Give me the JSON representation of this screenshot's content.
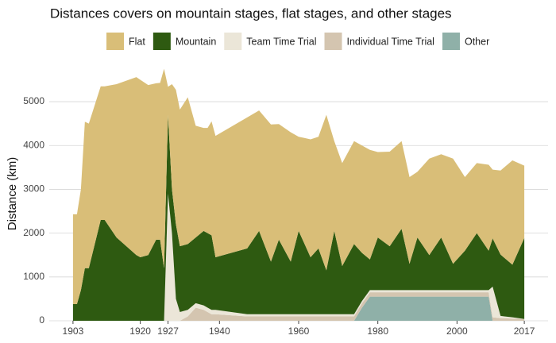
{
  "chart_data": {
    "type": "stacked-area",
    "title": "Distances covers on mountain stages, flat stages, and other stages",
    "ylabel": "Distance (km)",
    "x": [
      1903,
      1904,
      1905,
      1906,
      1907,
      1910,
      1911,
      1914,
      1919,
      1920,
      1922,
      1924,
      1925,
      1926,
      1927,
      1928,
      1929,
      1930,
      1932,
      1934,
      1936,
      1937,
      1938,
      1939,
      1947,
      1950,
      1953,
      1955,
      1958,
      1960,
      1963,
      1965,
      1967,
      1969,
      1971,
      1974,
      1976,
      1978,
      1980,
      1983,
      1986,
      1988,
      1990,
      1993,
      1996,
      1999,
      2002,
      2005,
      2008,
      2009,
      2011,
      2014,
      2017
    ],
    "series": [
      {
        "name": "Flat",
        "color": "#d9be78",
        "values": [
          2050,
          2050,
          2300,
          3340,
          3300,
          3050,
          3050,
          3500,
          4060,
          4050,
          3880,
          3570,
          3580,
          4550,
          640,
          2400,
          3070,
          3120,
          3350,
          2550,
          2350,
          2400,
          2600,
          2770,
          2990,
          2750,
          3130,
          2640,
          2950,
          2150,
          2690,
          2550,
          3550,
          2050,
          2350,
          2350,
          2450,
          2500,
          1950,
          2160,
          2000,
          1980,
          1500,
          2200,
          1900,
          2400,
          1680,
          1600,
          1960,
          1570,
          1920,
          2380,
          1650
        ]
      },
      {
        "name": "Mountain",
        "color": "#2e5a11",
        "values": [
          380,
          380,
          700,
          1200,
          1200,
          2300,
          2300,
          1900,
          1500,
          1450,
          1500,
          1850,
          1850,
          1200,
          1800,
          1000,
          1700,
          1500,
          1500,
          1500,
          1700,
          1700,
          1700,
          1200,
          1500,
          1900,
          1200,
          1700,
          1200,
          1900,
          1300,
          1500,
          1000,
          1900,
          1100,
          1600,
          1100,
          700,
          1200,
          1000,
          1400,
          600,
          1200,
          800,
          1200,
          600,
          900,
          1300,
          900,
          1100,
          1400,
          1200,
          1850
        ]
      },
      {
        "name": "Team Time Trial",
        "color": "#ebe6d8",
        "values": [
          0,
          0,
          0,
          0,
          0,
          0,
          0,
          0,
          0,
          0,
          0,
          0,
          0,
          0,
          2900,
          2000,
          500,
          200,
          150,
          100,
          100,
          100,
          100,
          100,
          50,
          50,
          50,
          50,
          50,
          50,
          50,
          50,
          50,
          50,
          50,
          50,
          50,
          50,
          50,
          50,
          50,
          50,
          50,
          50,
          50,
          50,
          50,
          50,
          50,
          700,
          50,
          30,
          0
        ]
      },
      {
        "name": "Individual Time Trial",
        "color": "#d4c5b0",
        "values": [
          0,
          0,
          0,
          0,
          0,
          0,
          0,
          0,
          0,
          0,
          0,
          0,
          0,
          0,
          0,
          0,
          0,
          0,
          100,
          300,
          250,
          200,
          150,
          150,
          100,
          100,
          100,
          100,
          100,
          100,
          100,
          100,
          100,
          100,
          100,
          100,
          100,
          100,
          100,
          100,
          100,
          100,
          100,
          100,
          100,
          100,
          100,
          100,
          100,
          80,
          60,
          50,
          40
        ]
      },
      {
        "name": "Other",
        "color": "#8fb0a8",
        "values": [
          0,
          0,
          0,
          0,
          0,
          0,
          0,
          0,
          0,
          0,
          0,
          0,
          0,
          0,
          0,
          0,
          0,
          0,
          0,
          0,
          0,
          0,
          0,
          0,
          0,
          0,
          0,
          0,
          0,
          0,
          0,
          0,
          0,
          0,
          0,
          0,
          300,
          550,
          550,
          550,
          550,
          550,
          550,
          550,
          550,
          550,
          550,
          550,
          550,
          0,
          0,
          0,
          0
        ]
      }
    ],
    "xlim": [
      1897,
      2023
    ],
    "ylim": [
      0,
      5780
    ],
    "xticks": [
      1903,
      1920,
      1927,
      1940,
      1960,
      1980,
      2000,
      2017
    ],
    "yticks": [
      0,
      1000,
      2000,
      3000,
      4000,
      5000
    ],
    "grid": true,
    "legend": "top"
  }
}
